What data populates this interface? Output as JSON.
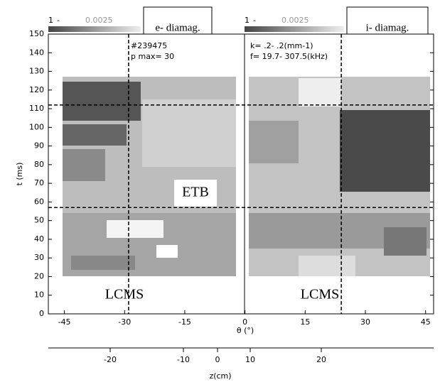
{
  "chart_data": {
    "type": "contour",
    "y_label": "t (ms)",
    "x_label": "θ (°)",
    "x2_label": "z(cm)",
    "xlim": [
      -49,
      47
    ],
    "xticks": [
      -45,
      -30,
      -15,
      0,
      15,
      30,
      45
    ],
    "ylim": [
      0,
      150
    ],
    "yticks": [
      0,
      10,
      20,
      30,
      40,
      50,
      60,
      70,
      80,
      90,
      100,
      110,
      120,
      130,
      140,
      150
    ],
    "x2ticks": [
      -20,
      -10,
      0,
      10,
      20
    ],
    "hlines": [
      112,
      57
    ],
    "vlines": [
      -29,
      24
    ],
    "colorbar_range": [
      1,
      0.0025
    ],
    "annotations": [
      "#239475",
      "p max= 30",
      "k= .2- .2(mm-1)",
      "f= 19.7- 307.5(kHz)"
    ],
    "labels": {
      "electron": "e- diamag.",
      "ion": "i- diamag.",
      "etb": "ETB",
      "lcms_left": "LCMS",
      "lcms_right": "LCMS"
    }
  }
}
